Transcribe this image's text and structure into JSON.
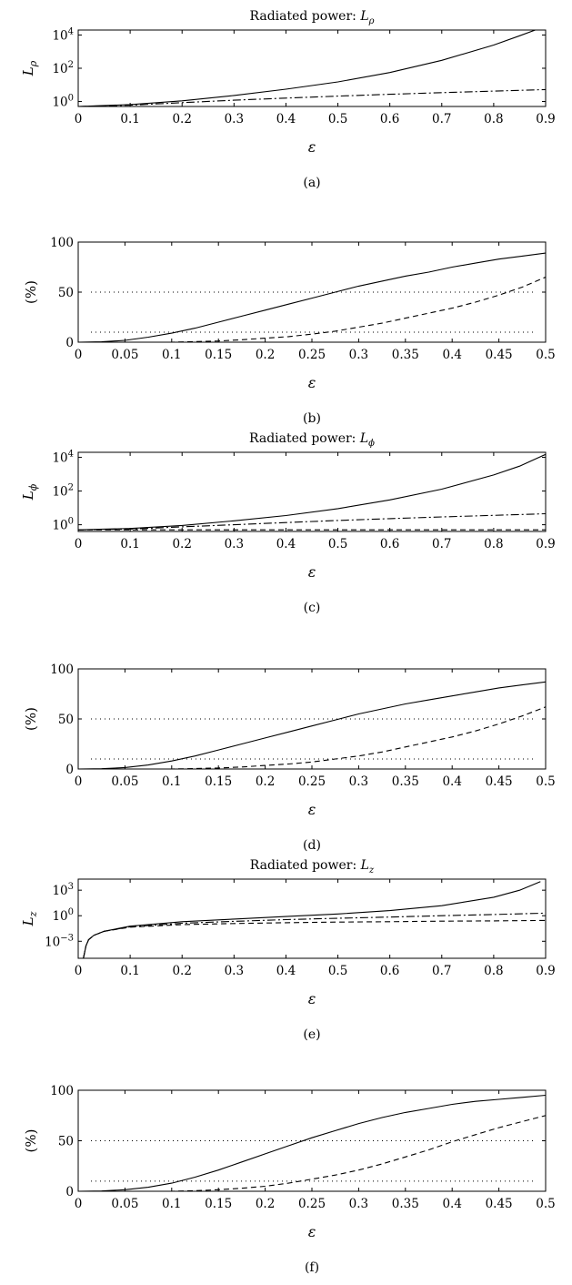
{
  "chart_data": [
    {
      "panel": "a",
      "type": "line",
      "title_prefix": "Radiated power: ",
      "title_var": "L",
      "title_sub": "ρ",
      "caption": "(a)",
      "xlabel": "ε",
      "ylabel_var": "L",
      "ylabel_sub": "ρ",
      "y_scale": "log",
      "xlim": [
        0,
        0.9
      ],
      "ylim_log10": [
        -0.3,
        4.3
      ],
      "x_ticks": [
        "0",
        "0.1",
        "0.2",
        "0.3",
        "0.4",
        "0.5",
        "0.6",
        "0.7",
        "0.8",
        "0.9"
      ],
      "y_ticks": [
        {
          "mantissa": "10",
          "exp": "0",
          "log10": 0
        },
        {
          "mantissa": "10",
          "exp": "2",
          "log10": 2
        },
        {
          "mantissa": "10",
          "exp": "4",
          "log10": 4
        }
      ],
      "series": [
        {
          "style": "solid",
          "x": [
            0,
            0.1,
            0.2,
            0.3,
            0.4,
            0.5,
            0.6,
            0.7,
            0.8,
            0.85,
            0.88
          ],
          "y": [
            0.5,
            0.65,
            1.1,
            2.3,
            5.5,
            15,
            55,
            300,
            2500,
            9000,
            20000
          ]
        },
        {
          "style": "dashdot",
          "x": [
            0,
            0.1,
            0.2,
            0.3,
            0.4,
            0.5,
            0.6,
            0.7,
            0.8,
            0.9
          ],
          "y": [
            0.5,
            0.6,
            0.85,
            1.2,
            1.6,
            2.1,
            2.7,
            3.4,
            4.2,
            5.2
          ]
        },
        {
          "style": "dashed",
          "x": [
            0,
            0.3,
            0.6,
            0.9
          ],
          "y": [
            0.5,
            0.5,
            0.5,
            0.5
          ]
        }
      ]
    },
    {
      "panel": "b",
      "type": "line",
      "caption": "(b)",
      "xlabel": "ε",
      "ylabel": "(%)",
      "xlim": [
        0,
        0.5
      ],
      "ylim": [
        0,
        100
      ],
      "x_ticks": [
        "0",
        "0.05",
        "0.1",
        "0.15",
        "0.2",
        "0.25",
        "0.3",
        "0.35",
        "0.4",
        "0.45",
        "0.5"
      ],
      "y_ticks": [
        "0",
        "50",
        "100"
      ],
      "reference_lines": [
        10,
        50
      ],
      "series": [
        {
          "style": "solid",
          "x": [
            0,
            0.025,
            0.05,
            0.075,
            0.1,
            0.125,
            0.15,
            0.175,
            0.2,
            0.225,
            0.25,
            0.275,
            0.3,
            0.325,
            0.35,
            0.375,
            0.4,
            0.425,
            0.45,
            0.475,
            0.5
          ],
          "y": [
            0,
            0.4,
            1.8,
            5,
            9,
            14,
            20,
            26,
            32,
            38,
            44,
            50,
            56,
            61,
            66,
            70,
            75,
            79,
            83,
            86,
            89
          ]
        },
        {
          "style": "dashed",
          "x": [
            0,
            0.1,
            0.125,
            0.15,
            0.175,
            0.2,
            0.225,
            0.25,
            0.275,
            0.3,
            0.325,
            0.35,
            0.375,
            0.4,
            0.425,
            0.45,
            0.475,
            0.5
          ],
          "y": [
            0,
            0,
            0.5,
            1.2,
            2.5,
            4,
            5.5,
            8,
            11,
            15,
            19,
            24,
            29,
            34,
            40,
            47,
            55,
            65
          ]
        }
      ]
    },
    {
      "panel": "c",
      "type": "line",
      "title_prefix": "Radiated power: ",
      "title_var": "L",
      "title_sub": "ϕ",
      "caption": "(c)",
      "xlabel": "ε",
      "ylabel_var": "L",
      "ylabel_sub": "ϕ",
      "y_scale": "log",
      "xlim": [
        0,
        0.9
      ],
      "ylim_log10": [
        -0.4,
        4.3
      ],
      "x_ticks": [
        "0",
        "0.1",
        "0.2",
        "0.3",
        "0.4",
        "0.5",
        "0.6",
        "0.7",
        "0.8",
        "0.9"
      ],
      "y_ticks": [
        {
          "mantissa": "10",
          "exp": "0",
          "log10": 0
        },
        {
          "mantissa": "10",
          "exp": "2",
          "log10": 2
        },
        {
          "mantissa": "10",
          "exp": "4",
          "log10": 4
        }
      ],
      "series": [
        {
          "style": "solid",
          "x": [
            0,
            0.1,
            0.2,
            0.3,
            0.4,
            0.5,
            0.6,
            0.7,
            0.8,
            0.85,
            0.9
          ],
          "y": [
            0.5,
            0.6,
            0.9,
            1.7,
            3.5,
            9,
            30,
            130,
            900,
            3000,
            15000
          ]
        },
        {
          "style": "dashdot",
          "x": [
            0,
            0.1,
            0.2,
            0.3,
            0.4,
            0.5,
            0.6,
            0.7,
            0.8,
            0.9
          ],
          "y": [
            0.5,
            0.55,
            0.75,
            1,
            1.35,
            1.8,
            2.3,
            2.9,
            3.6,
            4.5
          ]
        },
        {
          "style": "dashed",
          "x": [
            0,
            0.3,
            0.6,
            0.9
          ],
          "y": [
            0.5,
            0.5,
            0.5,
            0.5
          ]
        }
      ]
    },
    {
      "panel": "d",
      "type": "line",
      "caption": "(d)",
      "xlabel": "ε",
      "ylabel": "(%)",
      "xlim": [
        0,
        0.5
      ],
      "ylim": [
        0,
        100
      ],
      "x_ticks": [
        "0",
        "0.05",
        "0.1",
        "0.15",
        "0.2",
        "0.25",
        "0.3",
        "0.35",
        "0.4",
        "0.45",
        "0.5"
      ],
      "y_ticks": [
        "0",
        "50",
        "100"
      ],
      "reference_lines": [
        10,
        50
      ],
      "series": [
        {
          "style": "solid",
          "x": [
            0,
            0.025,
            0.05,
            0.075,
            0.1,
            0.125,
            0.15,
            0.175,
            0.2,
            0.225,
            0.25,
            0.275,
            0.3,
            0.325,
            0.35,
            0.375,
            0.4,
            0.425,
            0.45,
            0.475,
            0.5
          ],
          "y": [
            0,
            0.3,
            1.5,
            4,
            8,
            13,
            19,
            25,
            31,
            37,
            43,
            49,
            55,
            60,
            65,
            69,
            73,
            77,
            81,
            84,
            87
          ]
        },
        {
          "style": "dashed",
          "x": [
            0,
            0.1,
            0.125,
            0.15,
            0.175,
            0.2,
            0.225,
            0.25,
            0.275,
            0.3,
            0.325,
            0.35,
            0.375,
            0.4,
            0.425,
            0.45,
            0.475,
            0.5
          ],
          "y": [
            0,
            0,
            0.5,
            1,
            2,
            3.5,
            5,
            7,
            10,
            13,
            17,
            22,
            27,
            32,
            38,
            45,
            53,
            62
          ]
        }
      ]
    },
    {
      "panel": "e",
      "type": "line",
      "title_prefix": "Radiated power: ",
      "title_var": "L",
      "title_sub": "z",
      "caption": "(e)",
      "xlabel": "ε",
      "ylabel_var": "L",
      "ylabel_sub": "z",
      "y_scale": "log",
      "xlim": [
        0,
        0.9
      ],
      "ylim_log10": [
        -5,
        4.3
      ],
      "x_ticks": [
        "0",
        "0.1",
        "0.2",
        "0.3",
        "0.4",
        "0.5",
        "0.6",
        "0.7",
        "0.8",
        "0.9"
      ],
      "y_ticks": [
        {
          "mantissa": "10",
          "exp": "−3",
          "log10": -3
        },
        {
          "mantissa": "10",
          "exp": "0",
          "log10": 0
        },
        {
          "mantissa": "10",
          "exp": "3",
          "log10": 3
        }
      ],
      "series": [
        {
          "style": "solid",
          "x": [
            0.01,
            0.015,
            0.02,
            0.03,
            0.05,
            0.1,
            0.2,
            0.3,
            0.4,
            0.5,
            0.6,
            0.7,
            0.8,
            0.85,
            0.89
          ],
          "y": [
            1e-05,
            0.0003,
            0.0015,
            0.005,
            0.015,
            0.06,
            0.2,
            0.4,
            0.8,
            1.6,
            4,
            15,
            150,
            1000,
            10000
          ]
        },
        {
          "style": "dashdot",
          "x": [
            0.01,
            0.015,
            0.02,
            0.03,
            0.05,
            0.1,
            0.2,
            0.3,
            0.4,
            0.5,
            0.6,
            0.7,
            0.8,
            0.9
          ],
          "y": [
            1e-05,
            0.0003,
            0.0015,
            0.005,
            0.015,
            0.05,
            0.13,
            0.22,
            0.35,
            0.5,
            0.7,
            1.0,
            1.4,
            2.0
          ]
        },
        {
          "style": "dashed",
          "x": [
            0.01,
            0.015,
            0.02,
            0.03,
            0.05,
            0.1,
            0.2,
            0.3,
            0.4,
            0.5,
            0.6,
            0.7,
            0.8,
            0.9
          ],
          "y": [
            1e-05,
            0.0003,
            0.0015,
            0.005,
            0.015,
            0.045,
            0.09,
            0.12,
            0.15,
            0.18,
            0.2,
            0.23,
            0.25,
            0.28
          ]
        }
      ]
    },
    {
      "panel": "f",
      "type": "line",
      "caption": "(f)",
      "xlabel": "ε",
      "ylabel": "(%)",
      "xlim": [
        0,
        0.5
      ],
      "ylim": [
        0,
        100
      ],
      "x_ticks": [
        "0",
        "0.05",
        "0.1",
        "0.15",
        "0.2",
        "0.25",
        "0.3",
        "0.35",
        "0.4",
        "0.45",
        "0.5"
      ],
      "y_ticks": [
        "0",
        "50",
        "100"
      ],
      "reference_lines": [
        10,
        50
      ],
      "series": [
        {
          "style": "solid",
          "x": [
            0,
            0.025,
            0.05,
            0.075,
            0.1,
            0.125,
            0.15,
            0.175,
            0.2,
            0.225,
            0.25,
            0.275,
            0.3,
            0.325,
            0.35,
            0.375,
            0.4,
            0.425,
            0.45,
            0.475,
            0.5
          ],
          "y": [
            0,
            0.3,
            1.5,
            4,
            8,
            14,
            21,
            29,
            37,
            45,
            53,
            60,
            67,
            73,
            78,
            82,
            86,
            89,
            91,
            93,
            95
          ]
        },
        {
          "style": "dashed",
          "x": [
            0,
            0.1,
            0.125,
            0.15,
            0.175,
            0.2,
            0.225,
            0.25,
            0.275,
            0.3,
            0.325,
            0.35,
            0.375,
            0.4,
            0.425,
            0.45,
            0.475,
            0.5
          ],
          "y": [
            0,
            0,
            0.5,
            1.5,
            3,
            5,
            8,
            12,
            16,
            21,
            27,
            34,
            41,
            49,
            56,
            63,
            69,
            75
          ]
        }
      ]
    }
  ]
}
